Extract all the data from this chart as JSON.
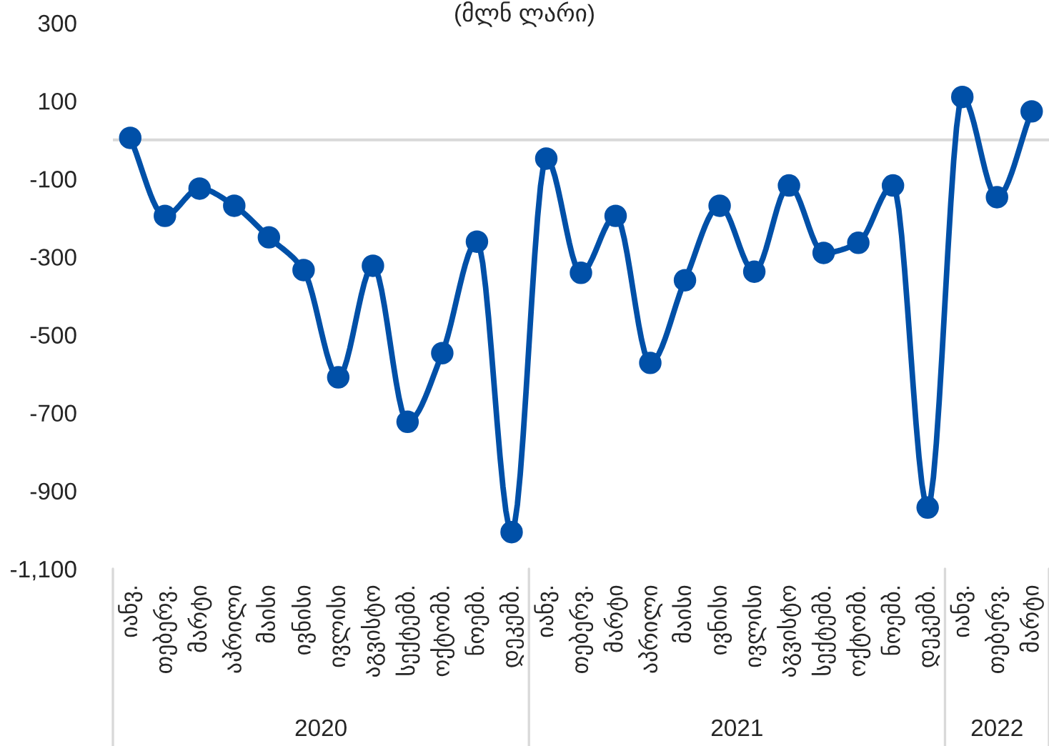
{
  "chart_data": {
    "type": "line",
    "title": "(მლნ ლარი)",
    "categories": [
      "იანვ.",
      "თებერვ.",
      "მარტი",
      "აპრილი",
      "მაისი",
      "ივნისი",
      "ივლისი",
      "აგვისტო",
      "სექტემბ.",
      "ოქტომბ.",
      "ნოემბ.",
      "დეკემბ.",
      "იანვ.",
      "თებერვ.",
      "მარტი",
      "აპრილი",
      "მაისი",
      "ივნისი",
      "ივლისი",
      "აგვისტო",
      "სექტემბ.",
      "ოქტომბ.",
      "ნოემბ.",
      "დეკემბ.",
      "იანვ.",
      "თებერვ.",
      "მარტი"
    ],
    "series": [
      {
        "color": "#0050a8",
        "values": [
          5,
          -195,
          -125,
          -169,
          -250,
          -334,
          -609,
          -323,
          -723,
          -547,
          -261,
          -1006,
          -48,
          -341,
          -195,
          -572,
          -360,
          -169,
          -338,
          -117,
          -290,
          -264,
          -117,
          -943,
          110,
          -147,
          73
        ]
      }
    ],
    "ylim": [
      -1100,
      300
    ],
    "yticks": [
      300,
      100,
      -100,
      -300,
      -500,
      -700,
      -900,
      {
        "value": -1100,
        "label": "-1,100"
      }
    ],
    "ref_lines": [
      {
        "axis": "y",
        "value": 0,
        "color": "#d9d9d9"
      }
    ],
    "annotations": [
      "2020",
      "2021",
      "2022"
    ],
    "marker": "circle",
    "line_style": "solid",
    "grid": false
  }
}
